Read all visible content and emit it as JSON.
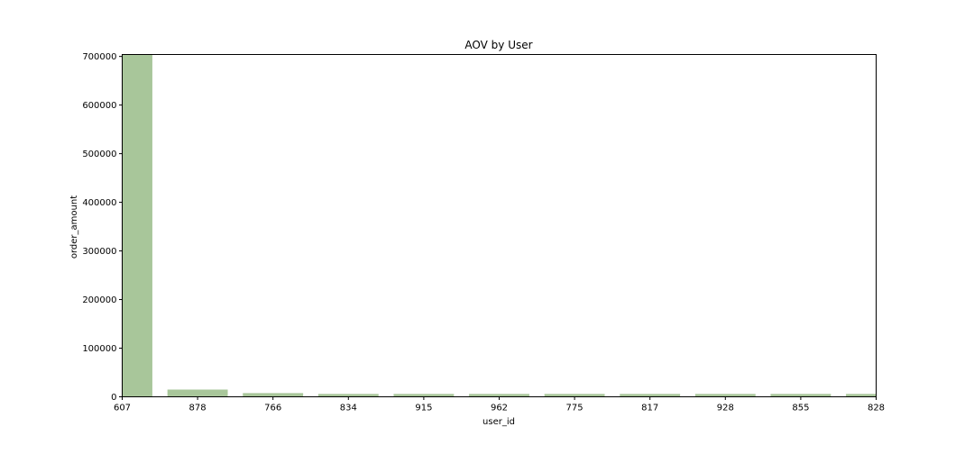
{
  "chart_data": {
    "type": "bar",
    "title": "AOV by User",
    "xlabel": "user_id",
    "ylabel": "order_amount",
    "categories": [
      "607",
      "878",
      "766",
      "834",
      "915",
      "962",
      "775",
      "817",
      "928",
      "855",
      "828"
    ],
    "values": [
      704000,
      14850,
      7600,
      5900,
      5900,
      5900,
      5900,
      5900,
      5900,
      5900,
      5900
    ],
    "ylim": [
      0,
      704000
    ],
    "yticks": [
      0,
      100000,
      200000,
      300000,
      400000,
      500000,
      600000,
      700000
    ],
    "ytick_labels": [
      "0",
      "100000",
      "200000",
      "300000",
      "400000",
      "500000",
      "600000",
      "700000"
    ],
    "grid": false,
    "bar_color": "#a8c69a"
  }
}
